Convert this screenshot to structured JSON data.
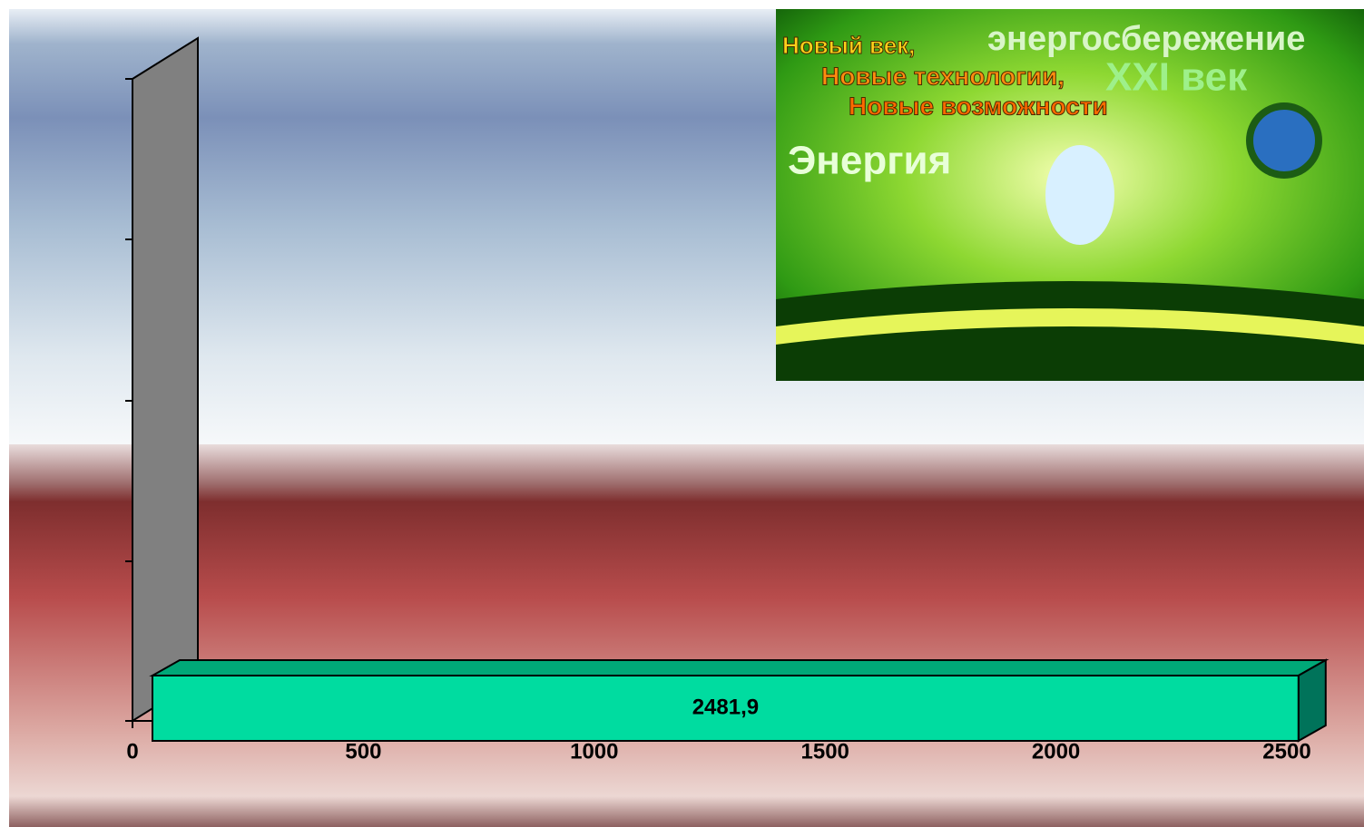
{
  "chart_data": {
    "type": "bar",
    "orientation": "horizontal",
    "categories": [
      null
    ],
    "values": [
      2481.9
    ],
    "value_labels": [
      "2481,9"
    ],
    "color": "#00dca0",
    "xlim": [
      0,
      2500
    ],
    "xticks": [
      0,
      500,
      1000,
      1500,
      2000,
      2500
    ],
    "grid": false
  },
  "banner": {
    "texts": [
      "Новый век,",
      "Новые технологии,",
      "Новые возможности",
      "энергосбережение",
      "XXI век",
      "Энергия"
    ]
  }
}
